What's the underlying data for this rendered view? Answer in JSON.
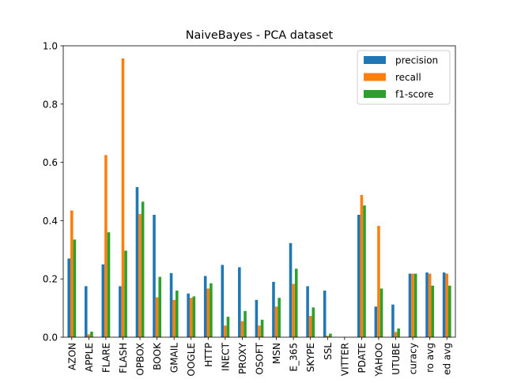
{
  "chart_data": {
    "type": "bar",
    "title": "NaiveBayes - PCA dataset",
    "xlabel": "",
    "ylabel": "",
    "ylim": [
      0,
      1.0
    ],
    "yticks": [
      "0.0",
      "0.2",
      "0.4",
      "0.6",
      "0.8",
      "1.0"
    ],
    "legend_position": "top-right",
    "categories": [
      "AZON",
      "APPLE",
      "FLARE",
      "FLASH",
      "OPBOX",
      "BOOK",
      "GMAIL",
      "OOGLE",
      "HTTP",
      "INECT",
      "PROXY",
      "OSOFT",
      "MSN",
      "E_365",
      "SKYPE",
      "SSL",
      "VITTER",
      "PDATE",
      "YAHOO",
      "UTUBE",
      "curacy",
      "ro avg",
      "ed avg"
    ],
    "series": [
      {
        "name": "precision",
        "color": "#1f77b4",
        "values": [
          0.27,
          0.175,
          0.25,
          0.175,
          0.515,
          0.42,
          0.22,
          0.15,
          0.21,
          0.248,
          0.24,
          0.128,
          0.19,
          0.323,
          0.175,
          0.16,
          0.0,
          0.42,
          0.105,
          0.112,
          0.218,
          0.222,
          0.222
        ]
      },
      {
        "name": "recall",
        "color": "#ff7f0e",
        "values": [
          0.435,
          0.01,
          0.625,
          0.957,
          0.423,
          0.137,
          0.128,
          0.135,
          0.167,
          0.04,
          0.055,
          0.04,
          0.105,
          0.183,
          0.073,
          0.005,
          0.0,
          0.488,
          0.382,
          0.018,
          0.218,
          0.218,
          0.218
        ]
      },
      {
        "name": "f1-score",
        "color": "#2ca02c",
        "values": [
          0.335,
          0.019,
          0.36,
          0.297,
          0.465,
          0.207,
          0.16,
          0.14,
          0.185,
          0.07,
          0.09,
          0.06,
          0.135,
          0.235,
          0.102,
          0.012,
          0.0,
          0.452,
          0.167,
          0.03,
          0.218,
          0.177,
          0.177
        ]
      }
    ]
  }
}
